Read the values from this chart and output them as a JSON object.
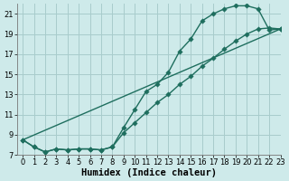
{
  "xlabel": "Humidex (Indice chaleur)",
  "ylabel": "",
  "bg_color": "#ceeaea",
  "grid_color": "#a8cccc",
  "line_color": "#1e6e5e",
  "ylim": [
    7,
    22
  ],
  "xlim": [
    -0.5,
    23
  ],
  "yticks": [
    7,
    9,
    11,
    13,
    15,
    17,
    19,
    21
  ],
  "xticks": [
    0,
    1,
    2,
    3,
    4,
    5,
    6,
    7,
    8,
    9,
    10,
    11,
    12,
    13,
    14,
    15,
    16,
    17,
    18,
    19,
    20,
    21,
    22,
    23
  ],
  "series1_x": [
    0,
    1,
    2,
    3,
    4,
    5,
    6,
    7,
    8,
    9,
    10,
    11,
    12,
    13,
    14,
    15,
    16,
    17,
    18,
    19,
    20,
    21,
    22,
    23
  ],
  "series1_y": [
    8.5,
    7.8,
    7.3,
    7.6,
    7.5,
    7.6,
    7.6,
    7.5,
    7.8,
    9.7,
    11.5,
    13.3,
    14.0,
    15.2,
    17.3,
    18.5,
    20.3,
    21.0,
    21.5,
    21.8,
    21.8,
    21.5,
    19.4,
    19.5
  ],
  "series2_x": [
    0,
    1,
    2,
    3,
    4,
    5,
    6,
    7,
    8,
    9,
    10,
    11,
    12,
    13,
    14,
    15,
    16,
    17,
    18,
    19,
    20,
    21,
    22,
    23
  ],
  "series2_y": [
    8.5,
    7.8,
    7.3,
    7.6,
    7.5,
    7.6,
    7.6,
    7.5,
    7.8,
    9.2,
    10.2,
    11.2,
    12.2,
    13.0,
    14.0,
    14.8,
    15.8,
    16.6,
    17.5,
    18.3,
    19.0,
    19.5,
    19.6,
    19.5
  ],
  "series3_x": [
    0,
    23
  ],
  "series3_y": [
    8.5,
    19.5
  ],
  "marker_size": 2.8,
  "linewidth": 1.0,
  "xlabel_fontsize": 7.5,
  "tick_fontsize": 6.0
}
